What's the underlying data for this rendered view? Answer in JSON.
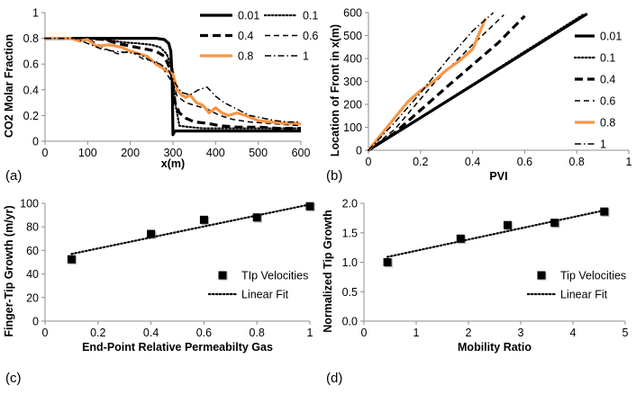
{
  "colors": {
    "black": "#000000",
    "orange": "#f79646",
    "grey": "#9e9e9e"
  },
  "chart_data": [
    {
      "id": "a",
      "panel_label": "(a)",
      "type": "line",
      "xlabel": "x(m)",
      "ylabel": "CO2 Molar Fraction",
      "xlim": [
        0,
        600
      ],
      "ylim": [
        0,
        1
      ],
      "xticks": [
        "0",
        "100",
        "200",
        "300",
        "400",
        "500",
        "600"
      ],
      "yticks": [
        "0",
        "0.2",
        "0.4",
        "0.6",
        "0.8",
        "1"
      ],
      "legend_position": "top-right",
      "series": [
        {
          "name": "0.01",
          "style": "solid-thick",
          "color": "#000000",
          "x": [
            0,
            200,
            260,
            280,
            290,
            295,
            298,
            300,
            303,
            306,
            330,
            600
          ],
          "y": [
            0.8,
            0.8,
            0.8,
            0.79,
            0.76,
            0.7,
            0.5,
            0.05,
            0.07,
            0.08,
            0.08,
            0.08
          ]
        },
        {
          "name": "0.1",
          "style": "dotted",
          "color": "#000000",
          "x": [
            0,
            100,
            140,
            180,
            220,
            250,
            270,
            285,
            300,
            305,
            315,
            340,
            370,
            400,
            440,
            480,
            520,
            560,
            600
          ],
          "y": [
            0.8,
            0.8,
            0.79,
            0.77,
            0.76,
            0.75,
            0.73,
            0.68,
            0.55,
            0.3,
            0.12,
            0.11,
            0.1,
            0.1,
            0.1,
            0.1,
            0.1,
            0.1,
            0.1
          ]
        },
        {
          "name": "0.4",
          "style": "dashed-thick",
          "color": "#000000",
          "x": [
            0,
            100,
            140,
            170,
            200,
            230,
            260,
            280,
            295,
            305,
            315,
            330,
            350,
            380,
            410,
            450,
            500,
            550,
            600
          ],
          "y": [
            0.8,
            0.8,
            0.79,
            0.76,
            0.74,
            0.72,
            0.7,
            0.66,
            0.55,
            0.3,
            0.22,
            0.18,
            0.15,
            0.14,
            0.12,
            0.11,
            0.11,
            0.1,
            0.1
          ]
        },
        {
          "name": "0.6",
          "style": "dashed",
          "color": "#000000",
          "x": [
            0,
            80,
            110,
            140,
            170,
            200,
            230,
            260,
            280,
            300,
            310,
            330,
            350,
            380,
            410,
            440,
            480,
            520,
            560,
            600
          ],
          "y": [
            0.8,
            0.8,
            0.78,
            0.72,
            0.68,
            0.7,
            0.64,
            0.62,
            0.55,
            0.45,
            0.35,
            0.3,
            0.28,
            0.25,
            0.2,
            0.17,
            0.15,
            0.14,
            0.13,
            0.12
          ]
        },
        {
          "name": "0.8",
          "style": "solid-orange",
          "color": "#f79646",
          "x": [
            0,
            60,
            80,
            100,
            120,
            150,
            180,
            200,
            220,
            240,
            260,
            280,
            300,
            310,
            320,
            330,
            340,
            355,
            370,
            385,
            400,
            415,
            430,
            450,
            470,
            500,
            530,
            560,
            590,
            600
          ],
          "y": [
            0.8,
            0.8,
            0.78,
            0.79,
            0.74,
            0.75,
            0.73,
            0.7,
            0.68,
            0.66,
            0.6,
            0.56,
            0.52,
            0.4,
            0.36,
            0.34,
            0.36,
            0.3,
            0.28,
            0.22,
            0.26,
            0.22,
            0.2,
            0.22,
            0.2,
            0.16,
            0.15,
            0.14,
            0.14,
            0.13
          ]
        },
        {
          "name": "1",
          "style": "dash-dot",
          "color": "#000000",
          "x": [
            0,
            70,
            100,
            130,
            160,
            190,
            220,
            250,
            270,
            290,
            305,
            320,
            340,
            360,
            380,
            400,
            420,
            450,
            480,
            510,
            540,
            570,
            600
          ],
          "y": [
            0.8,
            0.8,
            0.76,
            0.72,
            0.7,
            0.69,
            0.68,
            0.62,
            0.6,
            0.55,
            0.45,
            0.38,
            0.36,
            0.4,
            0.42,
            0.35,
            0.3,
            0.25,
            0.2,
            0.18,
            0.16,
            0.15,
            0.15
          ]
        }
      ]
    },
    {
      "id": "b",
      "panel_label": "(b)",
      "type": "line",
      "xlabel": "PVI",
      "ylabel": "Location of Front in x(m)",
      "xlim": [
        0,
        1
      ],
      "ylim": [
        0,
        600
      ],
      "xticks": [
        "0",
        "0.2",
        "0.4",
        "0.6",
        "0.8",
        "1"
      ],
      "yticks": [
        "0",
        "100",
        "200",
        "300",
        "400",
        "500",
        "600"
      ],
      "legend_position": "right",
      "series": [
        {
          "name": "0.01",
          "style": "solid-thick",
          "color": "#000000",
          "x": [
            0,
            0.84
          ],
          "y": [
            0,
            595
          ]
        },
        {
          "name": "0.1",
          "style": "dotted",
          "color": "#000000",
          "x": [
            0,
            0.83
          ],
          "y": [
            0,
            595
          ]
        },
        {
          "name": "0.4",
          "style": "dashed-thick",
          "color": "#000000",
          "x": [
            0,
            0.1,
            0.3,
            0.5,
            0.6
          ],
          "y": [
            0,
            75,
            275,
            470,
            585
          ]
        },
        {
          "name": "0.6",
          "style": "dashed",
          "color": "#000000",
          "x": [
            0,
            0.1,
            0.25,
            0.4,
            0.52
          ],
          "y": [
            0,
            90,
            290,
            460,
            590
          ]
        },
        {
          "name": "0.8",
          "style": "solid-orange",
          "color": "#f79646",
          "x": [
            0,
            0.05,
            0.1,
            0.15,
            0.2,
            0.25,
            0.3,
            0.35,
            0.4,
            0.45
          ],
          "y": [
            0,
            70,
            140,
            210,
            260,
            300,
            350,
            390,
            440,
            575
          ]
        },
        {
          "name": "1",
          "style": "dash-dot",
          "color": "#000000",
          "x": [
            0,
            0.1,
            0.2,
            0.3,
            0.4,
            0.48
          ],
          "y": [
            0,
            120,
            250,
            390,
            520,
            600
          ]
        }
      ]
    },
    {
      "id": "c",
      "panel_label": "(c)",
      "type": "scatter",
      "xlabel": "End-Point Relative Permeabilty Gas",
      "ylabel": "Finger-Tip Growth (m/yr)",
      "xlim": [
        0,
        1
      ],
      "ylim": [
        0,
        100
      ],
      "xticks": [
        "0",
        "0.2",
        "0.4",
        "0.6",
        "0.8",
        "1"
      ],
      "yticks": [
        "0",
        "20",
        "40",
        "60",
        "80",
        "100"
      ],
      "legend_position": "bottom-right",
      "series": [
        {
          "name": "TIp Velocities",
          "style": "square-marker",
          "color": "#000000",
          "x": [
            0.1,
            0.4,
            0.6,
            0.8,
            1.0
          ],
          "y": [
            52.5,
            74,
            86,
            88,
            97.5
          ]
        },
        {
          "name": "Linear Fit",
          "style": "dotted",
          "color": "#000000",
          "x": [
            0.1,
            1.0
          ],
          "y": [
            57,
            99
          ]
        }
      ]
    },
    {
      "id": "d",
      "panel_label": "(d)",
      "type": "scatter",
      "xlabel": "Mobility Ratio",
      "ylabel": "Normalized Tip Growth",
      "xlim": [
        0,
        5
      ],
      "ylim": [
        0,
        2
      ],
      "xticks": [
        "0",
        "1",
        "2",
        "3",
        "4",
        "5"
      ],
      "yticks": [
        "0.0",
        "0.5",
        "1.0",
        "1.5",
        "2.0"
      ],
      "legend_position": "bottom-right",
      "series": [
        {
          "name": "Tip Velocities",
          "style": "square-marker",
          "color": "#000000",
          "x": [
            0.45,
            1.85,
            2.75,
            3.65,
            4.6
          ],
          "y": [
            1.0,
            1.4,
            1.63,
            1.67,
            1.86
          ]
        },
        {
          "name": "Linear Fit",
          "style": "dotted",
          "color": "#000000",
          "x": [
            0.45,
            4.6
          ],
          "y": [
            1.09,
            1.88
          ]
        }
      ]
    }
  ]
}
